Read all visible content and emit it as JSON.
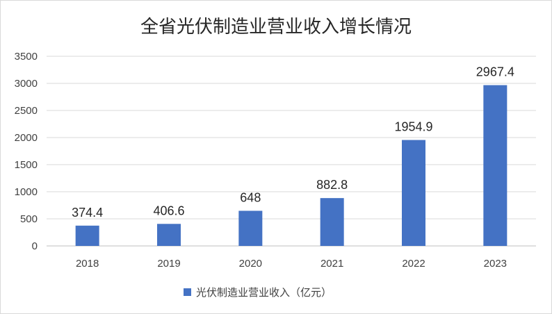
{
  "chart_data": {
    "type": "bar",
    "title": "全省光伏制造业营业收入增长情况",
    "categories": [
      "2018",
      "2019",
      "2020",
      "2021",
      "2022",
      "2023"
    ],
    "series": [
      {
        "name": "光伏制造业营业收入（亿元）",
        "values": [
          374.4,
          406.6,
          648,
          882.8,
          1954.9,
          2967.4
        ],
        "labels": [
          "374.4",
          "406.6",
          "648",
          "882.8",
          "1954.9",
          "2967.4"
        ],
        "color": "#4472c4"
      }
    ],
    "yticks": [
      "0",
      "500",
      "1000",
      "1500",
      "2000",
      "2500",
      "3000",
      "3500"
    ],
    "ylim": [
      0,
      3500
    ],
    "grid": true,
    "legend": "bottom",
    "xlabel": "",
    "ylabel": ""
  }
}
